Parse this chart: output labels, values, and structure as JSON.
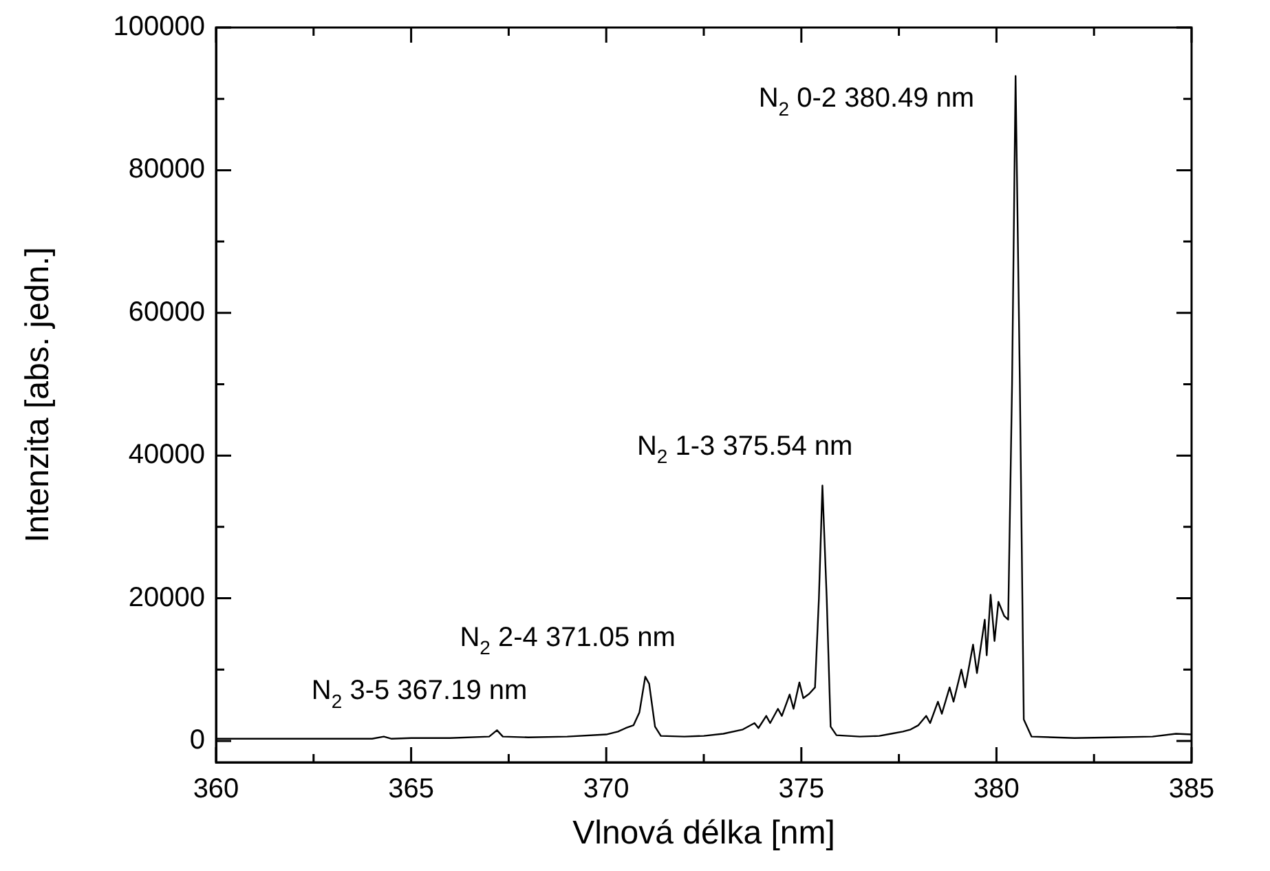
{
  "chart_data": {
    "type": "line",
    "xlabel": "Vlnová délka [nm]",
    "ylabel": "Intenzita [abs. jedn.]",
    "xlim": [
      360,
      385
    ],
    "ylim": [
      -3000,
      100000
    ],
    "xticks": [
      360,
      {
        "value": 362.5,
        "label": null
      },
      365,
      {
        "value": 367.5,
        "label": null
      },
      370,
      {
        "value": 372.5,
        "label": null
      },
      375,
      {
        "value": 377.5,
        "label": null
      },
      380,
      {
        "value": 382.5,
        "label": null
      },
      385
    ],
    "yticks": [
      0,
      {
        "value": 10000,
        "label": null
      },
      20000,
      {
        "value": 30000,
        "label": null
      },
      40000,
      {
        "value": 50000,
        "label": null
      },
      60000,
      {
        "value": 70000,
        "label": null
      },
      80000,
      {
        "value": 90000,
        "label": null
      },
      100000
    ],
    "grid": false,
    "legend": false,
    "marker": "none",
    "line_style": "solid",
    "annotations": [
      {
        "text": "N$_{2}$ 3-5 367.19 nm",
        "x": 367.2,
        "y": 1500
      },
      {
        "text": "N$_{2}$ 2-4 371.05 nm",
        "x": 371.0,
        "y": 9000
      },
      {
        "text": "N$_{2}$ 1-3 375.54 nm",
        "x": 375.54,
        "y": 35800
      },
      {
        "text": "N$_{2}$ 0-2 380.49 nm",
        "x": 380.49,
        "y": 93200
      }
    ],
    "series": [
      {
        "color": "#000000",
        "x": [
          360,
          361,
          362,
          363,
          364,
          364.3,
          364.5,
          365,
          366,
          367,
          367.2,
          367.35,
          368,
          369,
          370,
          370.3,
          370.5,
          370.7,
          370.85,
          371.0,
          371.1,
          371.25,
          371.4,
          372,
          372.5,
          373,
          373.5,
          373.8,
          373.9,
          374.1,
          374.2,
          374.4,
          374.5,
          374.7,
          374.8,
          374.95,
          375.05,
          375.2,
          375.35,
          375.45,
          375.54,
          375.65,
          375.75,
          375.9,
          376.5,
          377,
          377.3,
          377.6,
          377.8,
          378,
          378.2,
          378.3,
          378.5,
          378.6,
          378.8,
          378.9,
          379.1,
          379.2,
          379.4,
          379.5,
          379.7,
          379.75,
          379.85,
          379.95,
          380.05,
          380.2,
          380.3,
          380.4,
          380.49,
          380.6,
          380.7,
          380.9,
          382,
          383,
          384,
          384.6,
          385
        ],
        "values": [
          300,
          300,
          300,
          300,
          300,
          600,
          300,
          400,
          400,
          600,
          1500,
          600,
          500,
          600,
          900,
          1300,
          1800,
          2200,
          4000,
          9000,
          8000,
          2000,
          700,
          600,
          700,
          1000,
          1600,
          2500,
          1800,
          3500,
          2500,
          4500,
          3500,
          6500,
          4500,
          8200,
          6000,
          6600,
          7500,
          20000,
          35800,
          20000,
          2000,
          800,
          600,
          700,
          1000,
          1300,
          1600,
          2200,
          3500,
          2500,
          5500,
          3800,
          7500,
          5500,
          10000,
          7500,
          13500,
          9500,
          17000,
          12000,
          20500,
          14000,
          19500,
          17500,
          17000,
          50000,
          93200,
          50000,
          3000,
          600,
          400,
          500,
          600,
          1000,
          900
        ]
      }
    ]
  }
}
